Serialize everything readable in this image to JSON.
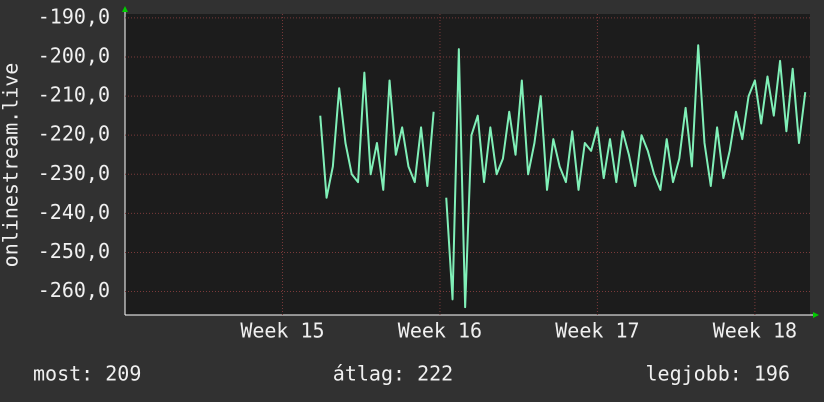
{
  "chart_data": {
    "type": "line",
    "y_label": "onlinestream.live",
    "x": [
      15.24,
      15.28,
      15.32,
      15.36,
      15.4,
      15.44,
      15.48,
      15.52,
      15.56,
      15.6,
      15.64,
      15.68,
      15.72,
      15.76,
      15.8,
      15.84,
      15.88,
      15.92,
      15.96,
      16.0,
      16.04,
      16.08,
      16.12,
      16.16,
      16.2,
      16.24,
      16.28,
      16.32,
      16.36,
      16.4,
      16.44,
      16.48,
      16.52,
      16.56,
      16.6,
      16.64,
      16.68,
      16.72,
      16.76,
      16.8,
      16.84,
      16.88,
      16.92,
      16.96,
      17,
      17.04,
      17.08,
      17.12,
      17.16,
      17.2,
      17.24,
      17.28,
      17.32,
      17.36,
      17.4,
      17.44,
      17.48,
      17.52,
      17.56,
      17.6,
      17.64,
      17.68,
      17.72,
      17.76,
      17.8,
      17.84,
      17.88,
      17.92,
      17.96,
      18,
      18.04,
      18.08,
      18.12,
      18.16,
      18.2,
      18.24,
      18.28,
      18.32
    ],
    "series": [
      {
        "color": "#80f0b8",
        "values": [
          -215,
          -236,
          -228,
          -208,
          -222,
          -230,
          -232,
          -204,
          -230,
          -222,
          -234,
          -206,
          -225,
          -218,
          -228,
          -232,
          -218,
          -233,
          -214,
          null,
          -236,
          -262,
          -198,
          -264,
          -220,
          -215,
          -232,
          -218,
          -230,
          -226,
          -214,
          -225,
          -206,
          -230,
          -222,
          -210,
          -234,
          -221,
          -228,
          -232,
          -219,
          -234,
          -222,
          -224,
          -218,
          -231,
          -221,
          -232,
          -219,
          -225,
          -233,
          -220,
          -224,
          -230,
          -234,
          -221,
          -232,
          -226,
          -213,
          -228,
          -197,
          -222,
          -233,
          -218,
          -231,
          -224,
          -214,
          -221,
          -210,
          -206,
          -217,
          -205,
          -215,
          -201,
          -219,
          -203,
          -222,
          -209
        ]
      }
    ],
    "xlim": [
      14,
      18.35
    ],
    "xticks": [
      {
        "value": 15,
        "label": "Week 15"
      },
      {
        "value": 16,
        "label": "Week 16"
      },
      {
        "value": 17,
        "label": "Week 17"
      },
      {
        "value": 18,
        "label": "Week 18"
      }
    ],
    "ylim": [
      -266,
      -189
    ],
    "yticks": [
      {
        "value": -260,
        "label": "-260,0"
      },
      {
        "value": -250,
        "label": "-250,0"
      },
      {
        "value": -240,
        "label": "-240,0"
      },
      {
        "value": -230,
        "label": "-230,0"
      },
      {
        "value": -220,
        "label": "-220,0"
      },
      {
        "value": -210,
        "label": "-210,0"
      },
      {
        "value": -200,
        "label": "-200,0"
      },
      {
        "value": -190,
        "label": "-190,0"
      }
    ],
    "grid": true,
    "footer": [
      "most: 209",
      "átlag: 222",
      "legjobb: 196"
    ]
  }
}
